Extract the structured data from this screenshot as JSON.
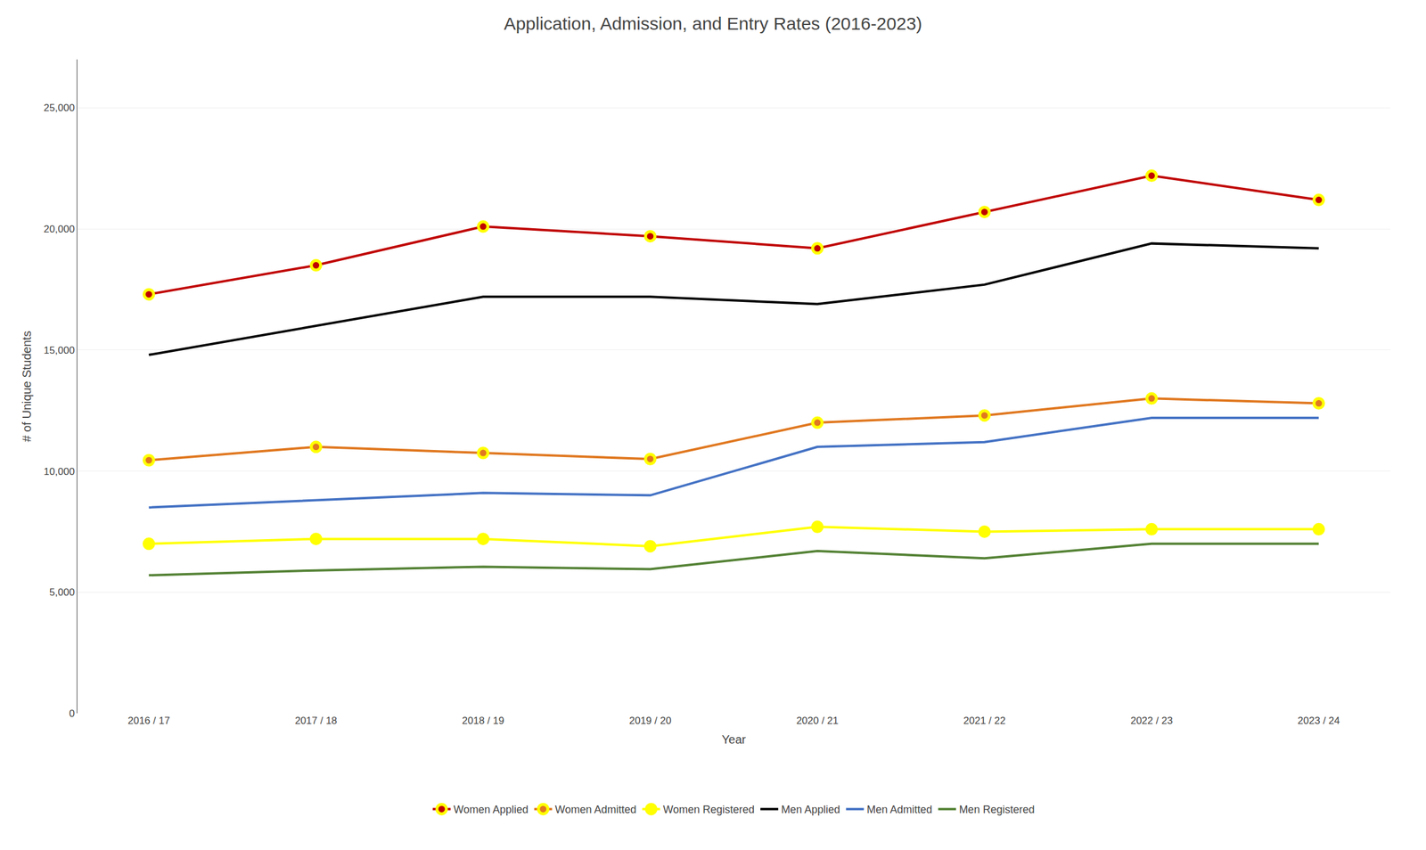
{
  "chart_data": {
    "type": "line",
    "title": "Application, Admission, and Entry Rates (2016-2023)",
    "xlabel": "Year",
    "ylabel": "# of Unique Students",
    "categories": [
      "2016 / 17",
      "2017 / 18",
      "2018 / 19",
      "2019 / 20",
      "2020 / 21",
      "2021 / 22",
      "2022 / 23",
      "2023 / 24"
    ],
    "series": [
      {
        "name": "Women Applied",
        "color": "#C00000",
        "marker": "circle",
        "values": [
          17300,
          18500,
          20100,
          19700,
          19200,
          20700,
          22200,
          21200
        ]
      },
      {
        "name": "Women Admitted",
        "color": "#E07820",
        "marker": "circle",
        "values": [
          10450,
          11000,
          10750,
          10500,
          12000,
          12300,
          13000,
          12800
        ]
      },
      {
        "name": "Women Registered",
        "color": "#FFFF00",
        "marker": "circle",
        "values": [
          7000,
          7200,
          7200,
          6900,
          7700,
          7500,
          7600,
          7600
        ]
      },
      {
        "name": "Men Applied",
        "color": "#000000",
        "marker": "none",
        "values": [
          14800,
          16000,
          17200,
          17200,
          16900,
          17700,
          19400,
          19200
        ]
      },
      {
        "name": "Men Admitted",
        "color": "#4472C4",
        "marker": "none",
        "values": [
          8500,
          8800,
          9100,
          9000,
          11000,
          11200,
          12200,
          12200
        ]
      },
      {
        "name": "Men Registered",
        "color": "#548235",
        "marker": "none",
        "values": [
          5700,
          5900,
          6050,
          5950,
          6700,
          6400,
          7000,
          7000
        ]
      }
    ],
    "ylim": [
      0,
      27000
    ],
    "yticks": [
      0,
      {
        "value": 5000,
        "label": "5,000"
      },
      {
        "value": 10000,
        "label": "10,000"
      },
      {
        "value": 15000,
        "label": "15,000"
      },
      {
        "value": 20000,
        "label": "20,000"
      },
      {
        "value": 25000,
        "label": "25,000"
      }
    ],
    "grid": true,
    "legend": "bottom"
  }
}
